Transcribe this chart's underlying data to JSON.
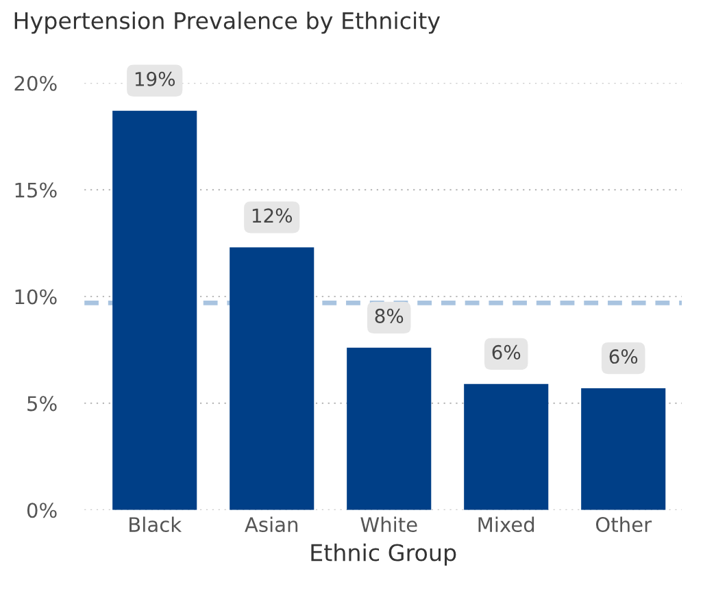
{
  "chart_data": {
    "type": "bar",
    "title": "Hypertension Prevalence by Ethnicity",
    "xlabel": "Ethnic Group",
    "categories": [
      "Black",
      "Asian",
      "White",
      "Mixed",
      "Other"
    ],
    "values": [
      18.7,
      12.3,
      7.6,
      5.9,
      5.7
    ],
    "value_labels": [
      "19%",
      "12%",
      "8%",
      "6%",
      "6%"
    ],
    "color": "#003f87",
    "ylim": [
      0,
      20
    ],
    "yticks": [
      {
        "value": 0,
        "label": "0%"
      },
      {
        "value": 5,
        "label": "5%"
      },
      {
        "value": 10,
        "label": "10%"
      },
      {
        "value": 15,
        "label": "15%"
      },
      {
        "value": 20,
        "label": "20%"
      }
    ],
    "grid": "y",
    "ref_lines": [
      {
        "axis": "y",
        "value": 9.7,
        "color": "#a9c4e0",
        "line_style": "dashed"
      }
    ]
  }
}
